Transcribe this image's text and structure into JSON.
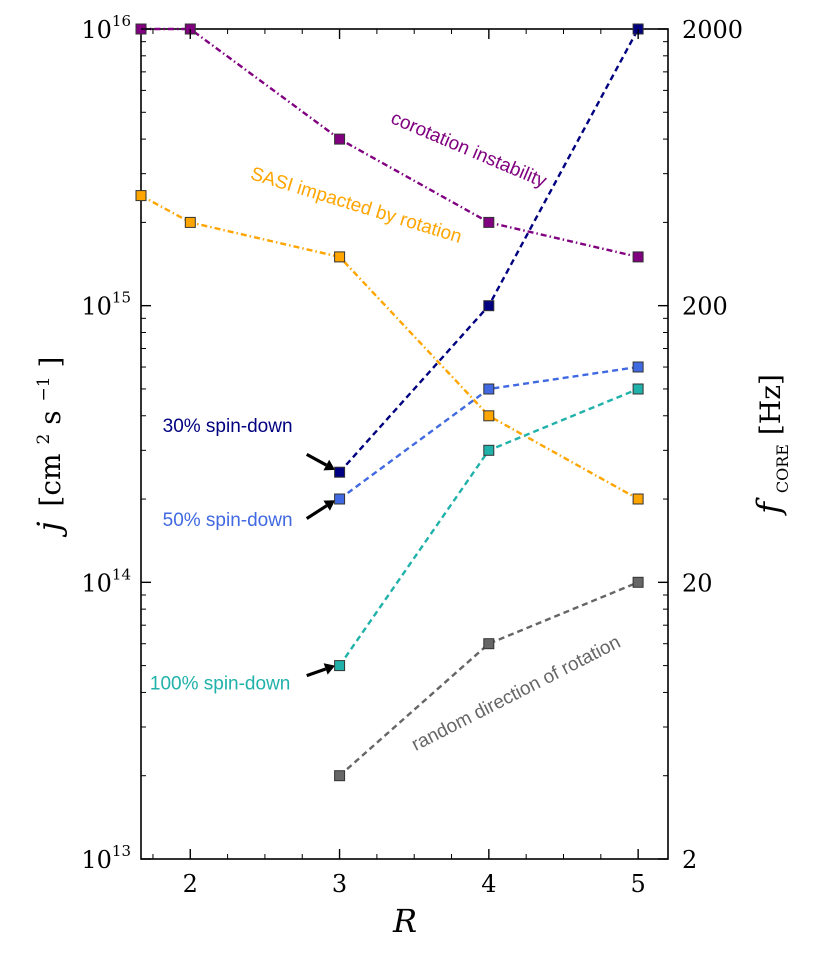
{
  "chart_data": {
    "type": "line",
    "xlabel": "R",
    "ylabel": {
      "var": "j",
      "unit": "[cm",
      "exp1": "2",
      "s": " s",
      "exp2": "−1",
      "close": "]"
    },
    "y2label": {
      "var": "f",
      "sub": "CORE",
      "unit": " [Hz]"
    },
    "yscale": "log",
    "xlim": [
      1.67,
      5.2
    ],
    "ylim": [
      10000000000000.0,
      1e+16
    ],
    "x_ticks": [
      "2",
      "3",
      "4",
      "5"
    ],
    "y_ticks": [
      {
        "value": 10000000000000.0,
        "base": "10",
        "exp": "13"
      },
      {
        "value": 100000000000000.0,
        "base": "10",
        "exp": "14"
      },
      {
        "value": 1000000000000000.0,
        "base": "10",
        "exp": "15"
      },
      {
        "value": 1e+16,
        "base": "10",
        "exp": "16"
      }
    ],
    "y2_ticks": [
      {
        "value": 10000000000000.0,
        "label": "2"
      },
      {
        "value": 100000000000000.0,
        "label": "20"
      },
      {
        "value": 1000000000000000.0,
        "label": "200"
      },
      {
        "value": 1e+16,
        "label": "2000"
      }
    ],
    "series": [
      {
        "name": "corotation instability",
        "color": "#800080",
        "dash": "dashdot",
        "x": [
          1.67,
          2,
          3,
          4,
          5
        ],
        "y": [
          1e+16,
          1e+16,
          4000000000000000.0,
          2000000000000000.0,
          1500000000000000.0
        ]
      },
      {
        "name": "SASI impacted by rotation",
        "color": "#FFA500",
        "dash": "dashdot",
        "x": [
          1.67,
          2,
          3,
          4,
          5
        ],
        "y": [
          2500000000000000.0,
          2000000000000000.0,
          1500000000000000.0,
          400000000000000.0,
          200000000000000.0
        ]
      },
      {
        "name": "30% spin-down",
        "color": "#000080",
        "dash": "dashed",
        "x": [
          3,
          4,
          5
        ],
        "y": [
          250000000000000.0,
          1000000000000000.0,
          1e+16
        ]
      },
      {
        "name": "50% spin-down",
        "color": "#4169E1",
        "dash": "dashed",
        "x": [
          3,
          4,
          5
        ],
        "y": [
          200000000000000.0,
          500000000000000.0,
          600000000000000.0
        ]
      },
      {
        "name": "100% spin-down",
        "color": "#20B2AA",
        "dash": "dashed",
        "x": [
          3,
          4,
          5
        ],
        "y": [
          50000000000000.0,
          300000000000000.0,
          500000000000000.0
        ]
      },
      {
        "name": "random direction of rotation",
        "color": "#666666",
        "dash": "dashed",
        "x": [
          3,
          4,
          5
        ],
        "y": [
          20000000000000.0,
          60000000000000.0,
          100000000000000.0
        ]
      }
    ],
    "annotations": [
      {
        "text": "corotation instability",
        "color": "#800080",
        "x": 3.85,
        "y": 3500000000000000.0,
        "rotate": 23
      },
      {
        "text": "SASI impacted by rotation",
        "color": "#FFA500",
        "x": 3.1,
        "y": 2200000000000000.0,
        "rotate": 17
      },
      {
        "text": "30% spin-down",
        "color": "#000080",
        "x": 2.25,
        "y": 350000000000000.0,
        "rotate": 0
      },
      {
        "text": "50% spin-down",
        "color": "#4169E1",
        "x": 2.25,
        "y": 160000000000000.0,
        "rotate": 0
      },
      {
        "text": "100% spin-down",
        "color": "#20B2AA",
        "x": 2.2,
        "y": 41000000000000.0,
        "rotate": 0
      },
      {
        "text": "random direction of rotation",
        "color": "#666666",
        "x": 4.2,
        "y": 38000000000000.0,
        "rotate": -27
      }
    ],
    "arrows": [
      {
        "series": "30% spin-down",
        "from": [
          2.78,
          290000000000000.0
        ],
        "to": [
          2.97,
          255000000000000.0
        ]
      },
      {
        "series": "50% spin-down",
        "from": [
          2.78,
          170000000000000.0
        ],
        "to": [
          2.97,
          198000000000000.0
        ]
      },
      {
        "series": "100% spin-down",
        "from": [
          2.78,
          46000000000000.0
        ],
        "to": [
          2.97,
          50000000000000.0
        ]
      }
    ]
  }
}
